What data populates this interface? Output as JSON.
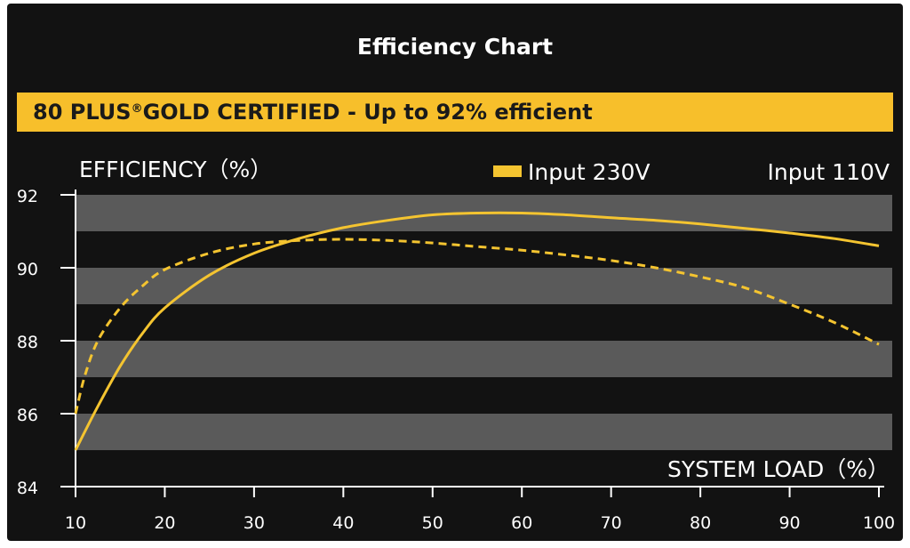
{
  "title": "Efficiency Chart",
  "banner": {
    "prefix": "80 PLUS",
    "mark": "®",
    "suffix": " GOLD CERTIFIED - Up to 92% efficient"
  },
  "colors": {
    "background": "#121212",
    "band": "#5a5a5a",
    "banner": "#f7bf2b",
    "line": "#f4c430",
    "text": "#ffffff"
  },
  "chart_data": {
    "type": "line",
    "ylabel": "EFFICIENCY（%）",
    "xlabel": "SYSTEM LOAD（%）",
    "xlim": [
      10,
      100
    ],
    "ylim": [
      84,
      92
    ],
    "xticks": [
      "10",
      "20",
      "30",
      "40",
      "50",
      "60",
      "70",
      "80",
      "90",
      "100"
    ],
    "yticks": [
      "84",
      "86",
      "88",
      "90",
      "92"
    ],
    "bands": [
      [
        85,
        86
      ],
      [
        87,
        88
      ],
      [
        89,
        90
      ],
      [
        91,
        92
      ]
    ],
    "series": [
      {
        "name": "Input 230V",
        "style": "solid",
        "legend_swatch": true,
        "x": [
          10,
          12.5,
          15,
          17.5,
          20,
          25,
          30,
          35,
          40,
          45,
          50,
          55,
          60,
          65,
          70,
          75,
          80,
          85,
          90,
          95,
          100
        ],
        "y": [
          85.0,
          86.2,
          87.3,
          88.2,
          88.9,
          89.8,
          90.4,
          90.8,
          91.1,
          91.3,
          91.45,
          91.5,
          91.5,
          91.45,
          91.37,
          91.3,
          91.2,
          91.08,
          90.95,
          90.8,
          90.6
        ]
      },
      {
        "name": "Input 110V",
        "style": "dashed",
        "legend_swatch": false,
        "x": [
          10,
          11,
          12.5,
          15,
          17.5,
          20,
          25,
          30,
          35,
          40,
          45,
          50,
          55,
          60,
          65,
          70,
          75,
          80,
          85,
          90,
          95,
          100
        ],
        "y": [
          86.0,
          87.0,
          88.0,
          88.9,
          89.5,
          89.95,
          90.4,
          90.65,
          90.75,
          90.78,
          90.75,
          90.68,
          90.58,
          90.48,
          90.35,
          90.2,
          90.0,
          89.75,
          89.45,
          89.0,
          88.5,
          87.9
        ]
      }
    ]
  }
}
